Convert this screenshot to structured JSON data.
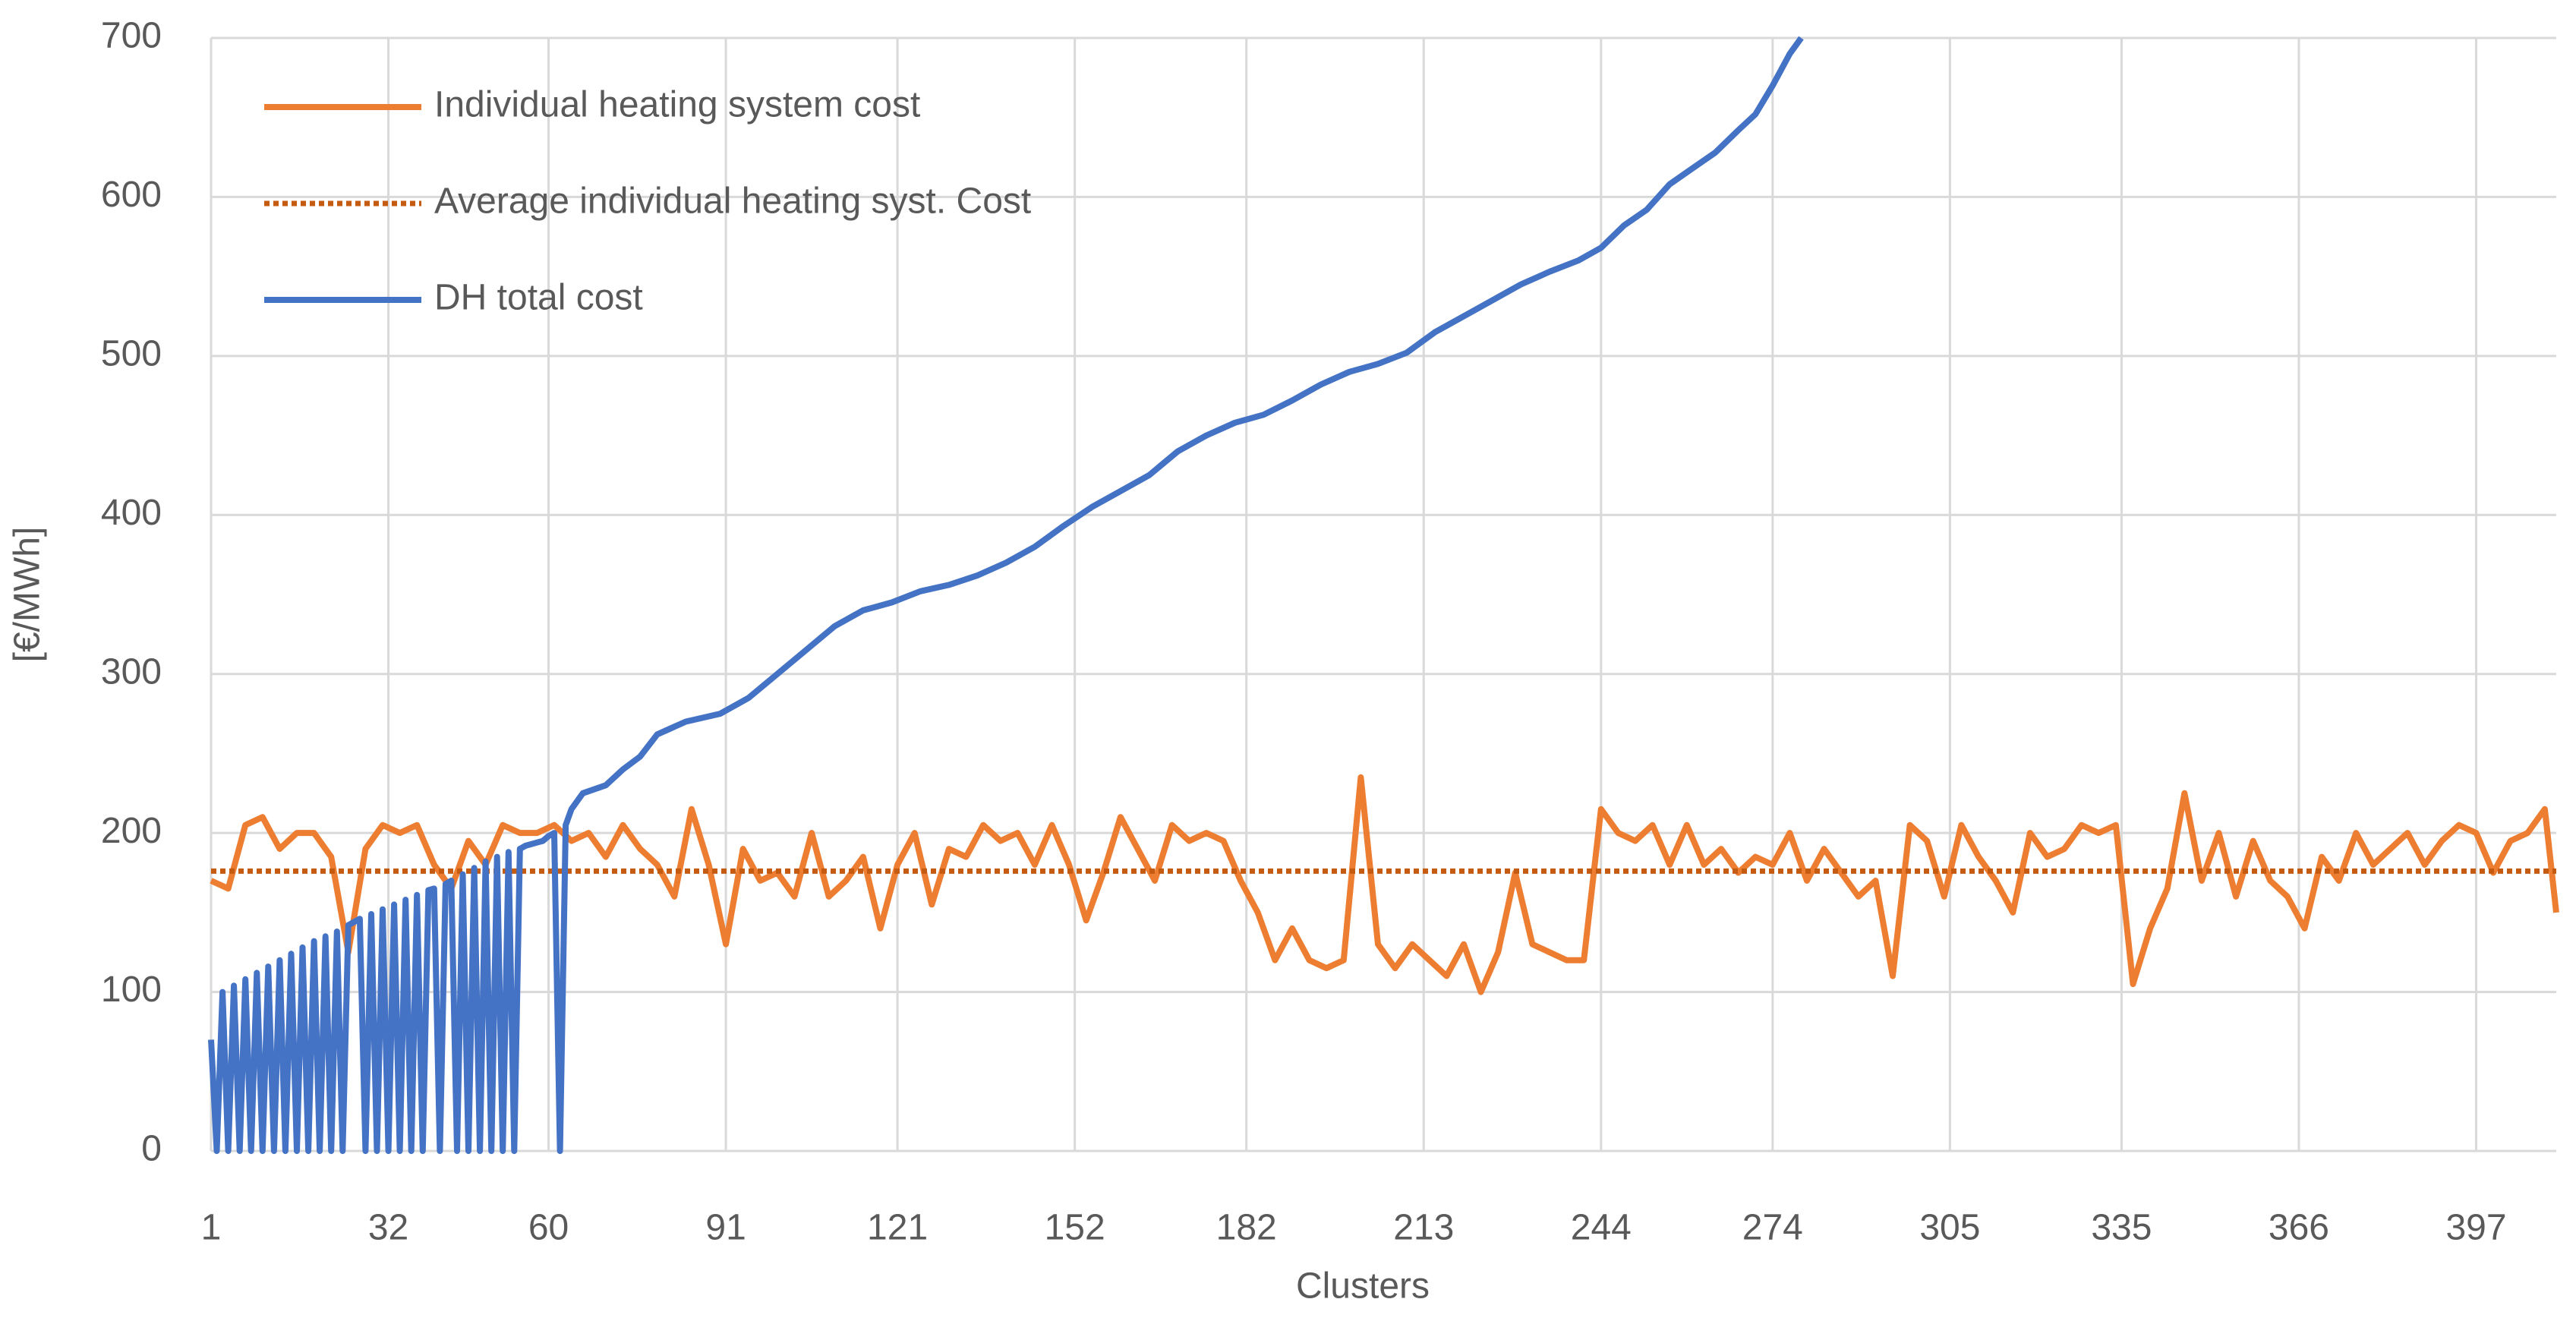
{
  "chart_data": {
    "type": "line",
    "x_label": "Clusters",
    "y_label": "[€/MWh]",
    "xlim": [
      1,
      411
    ],
    "xticks": [
      1,
      32,
      60,
      91,
      121,
      152,
      182,
      213,
      244,
      274,
      305,
      335,
      366,
      397
    ],
    "ylim": [
      0,
      700
    ],
    "yticks": [
      0,
      100,
      200,
      300,
      400,
      500,
      600,
      700
    ],
    "grid": true,
    "legend": "top-left",
    "series": [
      {
        "name": "Individual heating system cost",
        "color": "#ED7D31",
        "line_style": "solid",
        "x": [
          1,
          4,
          7,
          10,
          13,
          16,
          19,
          22,
          25,
          28,
          31,
          34,
          37,
          40,
          43,
          46,
          49,
          52,
          55,
          58,
          61,
          64,
          67,
          70,
          73,
          76,
          79,
          82,
          85,
          88,
          91,
          94,
          97,
          100,
          103,
          106,
          109,
          112,
          115,
          118,
          121,
          124,
          127,
          130,
          133,
          136,
          139,
          142,
          145,
          148,
          151,
          154,
          157,
          160,
          163,
          166,
          169,
          172,
          175,
          178,
          181,
          184,
          187,
          190,
          193,
          196,
          199,
          202,
          205,
          208,
          211,
          214,
          217,
          220,
          223,
          226,
          229,
          232,
          235,
          238,
          241,
          244,
          247,
          250,
          253,
          256,
          259,
          262,
          265,
          268,
          271,
          274,
          277,
          280,
          283,
          286,
          289,
          292,
          295,
          298,
          301,
          304,
          307,
          310,
          313,
          316,
          319,
          322,
          325,
          328,
          331,
          334,
          337,
          340,
          343,
          346,
          349,
          352,
          355,
          358,
          361,
          364,
          367,
          370,
          373,
          376,
          379,
          382,
          385,
          388,
          391,
          394,
          397,
          400,
          403,
          406,
          409,
          411
        ],
        "values": [
          170,
          165,
          205,
          210,
          190,
          200,
          200,
          185,
          125,
          190,
          205,
          200,
          205,
          180,
          165,
          195,
          180,
          205,
          200,
          200,
          205,
          195,
          200,
          185,
          205,
          190,
          180,
          160,
          215,
          180,
          130,
          190,
          170,
          175,
          160,
          200,
          160,
          170,
          185,
          140,
          180,
          200,
          155,
          190,
          185,
          205,
          195,
          200,
          180,
          205,
          180,
          145,
          175,
          210,
          190,
          170,
          205,
          195,
          200,
          195,
          170,
          150,
          120,
          140,
          120,
          115,
          120,
          235,
          130,
          115,
          130,
          120,
          110,
          130,
          100,
          125,
          175,
          130,
          125,
          120,
          120,
          215,
          200,
          195,
          205,
          180,
          205,
          180,
          190,
          175,
          185,
          180,
          200,
          170,
          190,
          175,
          160,
          170,
          110,
          205,
          195,
          160,
          205,
          185,
          170,
          150,
          200,
          185,
          190,
          205,
          200,
          205,
          105,
          140,
          165,
          225,
          170,
          200,
          160,
          195,
          170,
          160,
          140,
          185,
          170,
          200,
          180,
          190,
          200,
          180,
          195,
          205,
          200,
          175,
          195,
          200,
          215,
          150
        ]
      },
      {
        "name": "Average individual heating syst. Cost",
        "color": "#C55A11",
        "line_style": "dotted",
        "x": [
          1,
          411
        ],
        "values": [
          176,
          176
        ]
      },
      {
        "name": "DH total cost",
        "color": "#4472C4",
        "line_style": "solid",
        "x": [
          1,
          2,
          3,
          4,
          5,
          6,
          7,
          8,
          9,
          10,
          11,
          12,
          13,
          14,
          15,
          16,
          17,
          18,
          19,
          20,
          21,
          22,
          23,
          24,
          25,
          26,
          27,
          28,
          29,
          30,
          31,
          32,
          33,
          34,
          35,
          36,
          37,
          38,
          39,
          40,
          41,
          42,
          43,
          44,
          45,
          46,
          47,
          48,
          49,
          50,
          51,
          52,
          53,
          54,
          55,
          56,
          57,
          58,
          59,
          60,
          61,
          62,
          63,
          64,
          66,
          70,
          73,
          76,
          79,
          84,
          90,
          95,
          100,
          105,
          110,
          115,
          120,
          125,
          130,
          135,
          140,
          145,
          150,
          155,
          160,
          165,
          170,
          175,
          180,
          185,
          190,
          195,
          200,
          205,
          210,
          215,
          220,
          225,
          230,
          235,
          240,
          244,
          248,
          252,
          256,
          260,
          264,
          268,
          271,
          274,
          277,
          279
        ],
        "values": [
          70,
          0,
          100,
          0,
          104,
          0,
          108,
          0,
          112,
          0,
          116,
          0,
          120,
          0,
          124,
          0,
          128,
          0,
          132,
          0,
          135,
          0,
          138,
          0,
          142,
          144,
          146,
          0,
          149,
          0,
          152,
          0,
          155,
          0,
          158,
          0,
          161,
          0,
          164,
          165,
          0,
          168,
          170,
          0,
          174,
          0,
          178,
          0,
          182,
          0,
          185,
          0,
          188,
          0,
          190,
          192,
          193,
          194,
          195,
          198,
          200,
          0,
          205,
          215,
          225,
          230,
          240,
          248,
          262,
          270,
          275,
          285,
          300,
          315,
          330,
          340,
          345,
          352,
          356,
          362,
          370,
          380,
          393,
          405,
          415,
          425,
          440,
          450,
          458,
          463,
          472,
          482,
          490,
          495,
          502,
          515,
          525,
          535,
          545,
          553,
          560,
          568,
          582,
          592,
          608,
          618,
          628,
          642,
          652,
          670,
          690,
          700
        ]
      }
    ]
  }
}
